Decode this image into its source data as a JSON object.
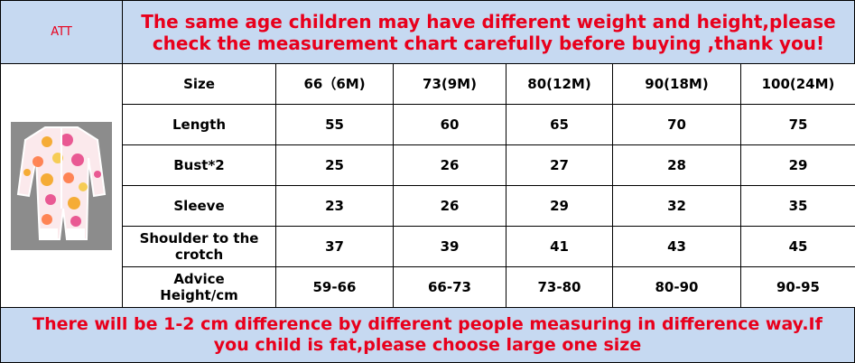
{
  "header": {
    "label": "ATT",
    "title": "The same age children may have different weight and height,please check the measurement chart carefully before buying ,thank you!"
  },
  "table": {
    "columns": [
      "Size",
      "66（6M)",
      "73(9M)",
      "80(12M)",
      "90(18M)",
      "100(24M)"
    ],
    "rows": [
      [
        "Length",
        55,
        60,
        65,
        70,
        75
      ],
      [
        "Bust*2",
        25,
        26,
        27,
        28,
        29
      ],
      [
        "Sleeve",
        23,
        26,
        29,
        32,
        35
      ],
      [
        "Shoulder to the crotch",
        37,
        39,
        41,
        43,
        45
      ],
      [
        "Advice Height/cm",
        "59-66",
        "66-73",
        "73-80",
        "80-90",
        "90-95"
      ]
    ]
  },
  "footer": {
    "note": "There will be 1-2 cm difference by different people measuring in difference way.If you child is fat,please choose large one size"
  }
}
